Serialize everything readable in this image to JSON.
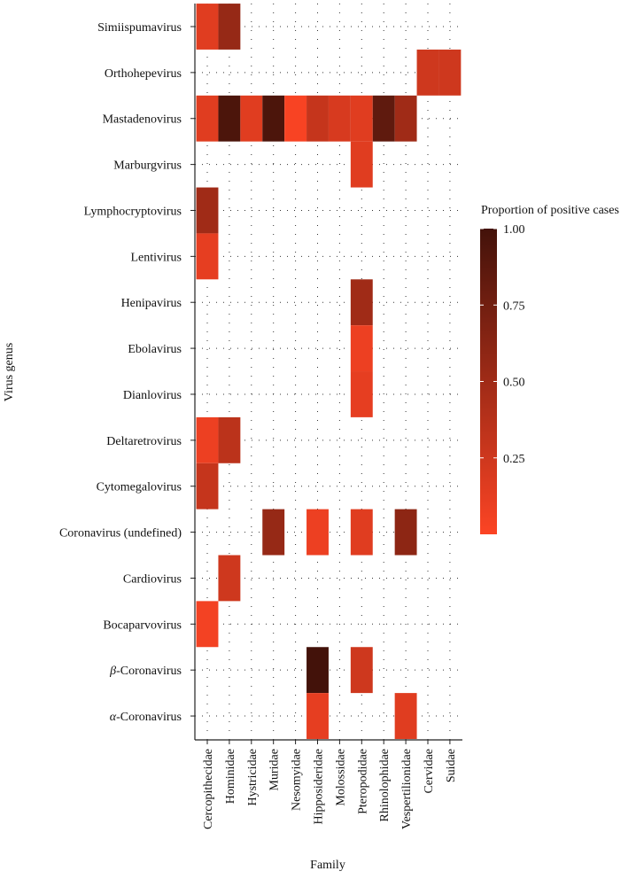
{
  "chart_data": {
    "type": "heatmap",
    "xlabel": "Family",
    "ylabel": "Virus genus",
    "legend_title": "Proportion of positive cases",
    "legend_placement": "right",
    "color_range": [
      0,
      1
    ],
    "color_low": "#fc4424",
    "color_high": "#43120a",
    "legend_ticks": [
      "0.25",
      "0.50",
      "0.75",
      "1.00"
    ],
    "legend_tick_values": [
      0.25,
      0.5,
      0.75,
      1.0
    ],
    "x_categories": [
      "Cercopithecidae",
      "Hominidae",
      "Hystricidae",
      "Muridae",
      "Nesomyidae",
      "Hipposideridae",
      "Molossidae",
      "Pteropodidae",
      "Rhinolophidae",
      "Vespertilionidae",
      "Cervidae",
      "Suidae"
    ],
    "y_categories": [
      "Simiispumavirus",
      "Orthohepevirus",
      "Mastadenovirus",
      "Marburgvirus",
      "Lymphocryptovirus",
      "Lentivirus",
      "Henipavirus",
      "Ebolavirus",
      "Dianlovirus",
      "Deltaretrovirus",
      "Cytomegalovirus",
      "Coronavirus (undefined)",
      "Cardiovirus",
      "Bocaparvovirus",
      "β-Coronavirus",
      "α-Coronavirus"
    ],
    "cells": [
      [
        "Simiispumavirus",
        "Cercopithecidae",
        0.15
      ],
      [
        "Simiispumavirus",
        "Hominidae",
        0.55
      ],
      [
        "Orthohepevirus",
        "Cervidae",
        0.25
      ],
      [
        "Orthohepevirus",
        "Suidae",
        0.25
      ],
      [
        "Mastadenovirus",
        "Cercopithecidae",
        0.15
      ],
      [
        "Mastadenovirus",
        "Hominidae",
        0.95
      ],
      [
        "Mastadenovirus",
        "Hystricidae",
        0.15
      ],
      [
        "Mastadenovirus",
        "Muridae",
        0.95
      ],
      [
        "Mastadenovirus",
        "Nesomyidae",
        0.02
      ],
      [
        "Mastadenovirus",
        "Hipposideridae",
        0.3
      ],
      [
        "Mastadenovirus",
        "Molossidae",
        0.2
      ],
      [
        "Mastadenovirus",
        "Pteropodidae",
        0.15
      ],
      [
        "Mastadenovirus",
        "Rhinolophidae",
        0.85
      ],
      [
        "Mastadenovirus",
        "Vespertilionidae",
        0.5
      ],
      [
        "Marburgvirus",
        "Pteropodidae",
        0.15
      ],
      [
        "Lymphocryptovirus",
        "Cercopithecidae",
        0.5
      ],
      [
        "Lentivirus",
        "Cercopithecidae",
        0.12
      ],
      [
        "Henipavirus",
        "Pteropodidae",
        0.5
      ],
      [
        "Ebolavirus",
        "Pteropodidae",
        0.08
      ],
      [
        "Dianlovirus",
        "Pteropodidae",
        0.12
      ],
      [
        "Deltaretrovirus",
        "Cercopithecidae",
        0.08
      ],
      [
        "Deltaretrovirus",
        "Hominidae",
        0.35
      ],
      [
        "Cytomegalovirus",
        "Cercopithecidae",
        0.3
      ],
      [
        "Coronavirus (undefined)",
        "Muridae",
        0.55
      ],
      [
        "Coronavirus (undefined)",
        "Hipposideridae",
        0.08
      ],
      [
        "Coronavirus (undefined)",
        "Pteropodidae",
        0.15
      ],
      [
        "Coronavirus (undefined)",
        "Vespertilionidae",
        0.6
      ],
      [
        "Cardiovirus",
        "Hominidae",
        0.25
      ],
      [
        "Bocaparvovirus",
        "Cercopithecidae",
        0.05
      ],
      [
        "β-Coronavirus",
        "Hipposideridae",
        1.0
      ],
      [
        "β-Coronavirus",
        "Pteropodidae",
        0.25
      ],
      [
        "α-Coronavirus",
        "Hipposideridae",
        0.12
      ],
      [
        "α-Coronavirus",
        "Vespertilionidae",
        0.15
      ]
    ]
  }
}
